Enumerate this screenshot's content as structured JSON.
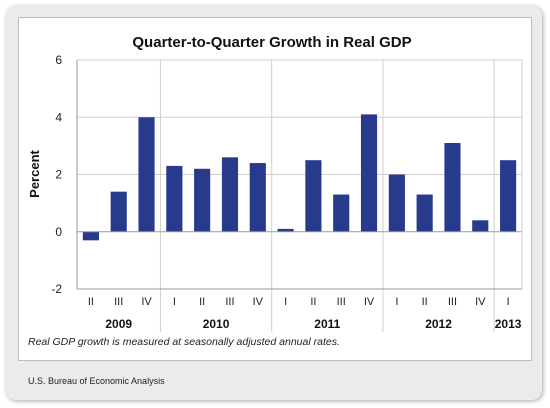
{
  "chart_data": {
    "type": "bar",
    "title": "Quarter-to-Quarter Growth in Real GDP",
    "ylabel": "Percent",
    "ylim": [
      -2,
      6
    ],
    "yticks": [
      -2,
      0,
      2,
      4,
      6
    ],
    "grid": "horizontal",
    "legend": "none",
    "bar_color": "#283a8c",
    "categories": [
      "II",
      "III",
      "IV",
      "I",
      "II",
      "III",
      "IV",
      "I",
      "II",
      "III",
      "IV",
      "I",
      "II",
      "III",
      "IV",
      "I"
    ],
    "values": [
      -0.3,
      1.4,
      4.0,
      2.3,
      2.2,
      2.6,
      2.4,
      0.1,
      2.5,
      1.3,
      4.1,
      2.0,
      1.3,
      3.1,
      0.4,
      2.5
    ],
    "year_groups": [
      {
        "label": "2009",
        "count": 3
      },
      {
        "label": "2010",
        "count": 4
      },
      {
        "label": "2011",
        "count": 4
      },
      {
        "label": "2012",
        "count": 4
      },
      {
        "label": "2013",
        "count": 1
      }
    ]
  },
  "note": "Real GDP growth is measured at seasonally adjusted annual rates.",
  "source": "U.S. Bureau of Economic Analysis"
}
